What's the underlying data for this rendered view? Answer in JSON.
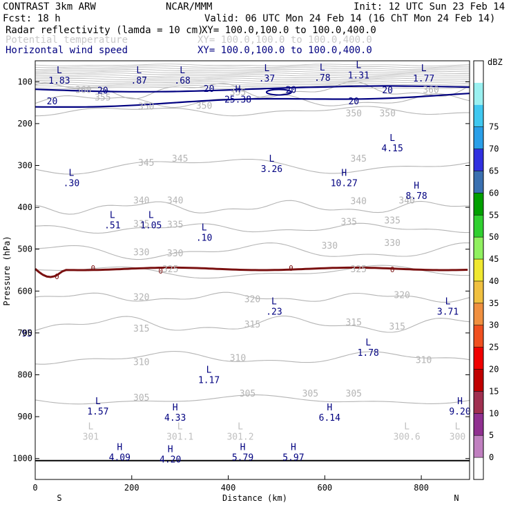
{
  "header": {
    "title": "CONTRAST  3km ARW",
    "source": "NCAR/MMM",
    "init": "Init: 12 UTC Sun 23 Feb 14",
    "fcst_label": "Fcst:",
    "fcst_value": "18 h",
    "valid": "Valid: 06 UTC Mon 24 Feb 14 (16 ChT Mon 24 Feb 14)",
    "fields": [
      {
        "name": "Radar reflectivity (lamda = 10 cm)",
        "xy": "XY= 100.0,100.0 to 100.0,400.0",
        "color": "#000000"
      },
      {
        "name": "Potential temperature",
        "xy": "XY= 100.0,100.0 to 100.0,400.0",
        "color": "#c8c8c8"
      },
      {
        "name": "Horizontal wind speed",
        "xy": "XY= 100.0,100.0 to 100.0,400.0",
        "color": "#000080"
      }
    ]
  },
  "chart_data": {
    "type": "contour-cross-section",
    "xlabel": "Distance (km)",
    "ylabel": "Pressure (hPa)",
    "xlim": [
      0,
      900
    ],
    "ylim": [
      1050,
      50
    ],
    "x_ticks": [
      0,
      200,
      400,
      600,
      800
    ],
    "y_ticks": [
      100,
      200,
      300,
      400,
      500,
      600,
      700,
      800,
      900,
      1000
    ],
    "x_end_labels": {
      "left": "S",
      "right": "N"
    },
    "theta_contours": [
      {
        "label": "305",
        "base": 860
      },
      {
        "label": "310",
        "base": 760
      },
      {
        "label": "315",
        "base": 680
      },
      {
        "label": "320",
        "base": 615
      },
      {
        "label": "325",
        "base": 555
      },
      {
        "label": "330",
        "base": 505
      },
      {
        "label": "335",
        "base": 450
      },
      {
        "label": "340",
        "base": 400
      },
      {
        "label": "345",
        "base": 300
      },
      {
        "label": "350",
        "base": 170
      },
      {
        "label": "355",
        "base": 145
      },
      {
        "label": "360",
        "base": 120
      }
    ],
    "theta_labels": [
      {
        "text": "305",
        "x": 220,
        "p": 855
      },
      {
        "text": "305",
        "x": 440,
        "p": 845
      },
      {
        "text": "305",
        "x": 570,
        "p": 845
      },
      {
        "text": "305",
        "x": 660,
        "p": 845
      },
      {
        "text": "310",
        "x": 220,
        "p": 770
      },
      {
        "text": "310",
        "x": 420,
        "p": 760
      },
      {
        "text": "310",
        "x": 805,
        "p": 765
      },
      {
        "text": "315",
        "x": 220,
        "p": 690
      },
      {
        "text": "315",
        "x": 450,
        "p": 680
      },
      {
        "text": "315",
        "x": 660,
        "p": 675
      },
      {
        "text": "315",
        "x": 750,
        "p": 685
      },
      {
        "text": "320",
        "x": 220,
        "p": 615
      },
      {
        "text": "320",
        "x": 450,
        "p": 620
      },
      {
        "text": "320",
        "x": 760,
        "p": 610
      },
      {
        "text": "325",
        "x": 280,
        "p": 548
      },
      {
        "text": "325",
        "x": 670,
        "p": 548
      },
      {
        "text": "330",
        "x": 220,
        "p": 508
      },
      {
        "text": "330",
        "x": 290,
        "p": 510
      },
      {
        "text": "330",
        "x": 610,
        "p": 492
      },
      {
        "text": "330",
        "x": 740,
        "p": 486
      },
      {
        "text": "335",
        "x": 220,
        "p": 440
      },
      {
        "text": "335",
        "x": 290,
        "p": 442
      },
      {
        "text": "335",
        "x": 650,
        "p": 435
      },
      {
        "text": "335",
        "x": 740,
        "p": 432
      },
      {
        "text": "340",
        "x": 220,
        "p": 384
      },
      {
        "text": "340",
        "x": 290,
        "p": 384
      },
      {
        "text": "340",
        "x": 670,
        "p": 386
      },
      {
        "text": "340",
        "x": 770,
        "p": 384
      },
      {
        "text": "345",
        "x": 230,
        "p": 294
      },
      {
        "text": "345",
        "x": 300,
        "p": 284
      },
      {
        "text": "345",
        "x": 670,
        "p": 284
      },
      {
        "text": "350",
        "x": 230,
        "p": 160
      },
      {
        "text": "350",
        "x": 350,
        "p": 158
      },
      {
        "text": "350",
        "x": 660,
        "p": 176
      },
      {
        "text": "350",
        "x": 730,
        "p": 176
      },
      {
        "text": "355",
        "x": 140,
        "p": 138
      },
      {
        "text": "355",
        "x": 420,
        "p": 126
      },
      {
        "text": "360",
        "x": 100,
        "p": 120
      },
      {
        "text": "360",
        "x": 820,
        "p": 120
      }
    ],
    "wind_contour_label": "20",
    "wind_labels": [
      {
        "text": "20",
        "x": 35,
        "p": 147
      },
      {
        "text": "20",
        "x": 140,
        "p": 122
      },
      {
        "text": "20",
        "x": 360,
        "p": 118
      },
      {
        "text": "20",
        "x": 530,
        "p": 120
      },
      {
        "text": "20",
        "x": 660,
        "p": 147
      },
      {
        "text": "20",
        "x": 730,
        "p": 121
      }
    ],
    "dbz_contour_label": "0",
    "dbz_labels": [
      {
        "text": "0",
        "x": 45,
        "p": 565
      },
      {
        "text": "0",
        "x": 120,
        "p": 545
      },
      {
        "text": "0",
        "x": 260,
        "p": 552
      },
      {
        "text": "0",
        "x": 530,
        "p": 545
      },
      {
        "text": "0",
        "x": 740,
        "p": 548
      }
    ],
    "extrema": [
      {
        "type": "L",
        "value": "1.83",
        "x": 50,
        "p": 85
      },
      {
        "type": "L",
        "value": ".87",
        "x": 215,
        "p": 85
      },
      {
        "type": "L",
        "value": ".68",
        "x": 305,
        "p": 85
      },
      {
        "type": "L",
        "value": ".37",
        "x": 480,
        "p": 80
      },
      {
        "type": "L",
        "value": ".78",
        "x": 595,
        "p": 78
      },
      {
        "type": "L",
        "value": "1.31",
        "x": 670,
        "p": 72
      },
      {
        "type": "L",
        "value": "1.77",
        "x": 805,
        "p": 80
      },
      {
        "type": "H",
        "value": "25.38",
        "x": 420,
        "p": 130
      },
      {
        "type": "L",
        "value": "4.15",
        "x": 740,
        "p": 246
      },
      {
        "type": "L",
        "value": ".30",
        "x": 75,
        "p": 330
      },
      {
        "type": "L",
        "value": "3.26",
        "x": 490,
        "p": 296
      },
      {
        "type": "H",
        "value": "10.27",
        "x": 640,
        "p": 330
      },
      {
        "type": "H",
        "value": "8.78",
        "x": 790,
        "p": 360
      },
      {
        "type": "L",
        "value": ".51",
        "x": 160,
        "p": 430
      },
      {
        "type": "L",
        "value": "1.05",
        "x": 240,
        "p": 430
      },
      {
        "type": "L",
        "value": ".10",
        "x": 350,
        "p": 460
      },
      {
        "type": "L",
        "value": ".23",
        "x": 495,
        "p": 637
      },
      {
        "type": "L",
        "value": "3.71",
        "x": 855,
        "p": 637
      },
      {
        "type": "L",
        "value": "1.78",
        "x": 690,
        "p": 735
      },
      {
        "type": "L",
        "value": "1.17",
        "x": 360,
        "p": 800
      },
      {
        "type": "L",
        "value": "1.57",
        "x": 130,
        "p": 875
      },
      {
        "type": "H",
        "value": "4.33",
        "x": 290,
        "p": 890
      },
      {
        "type": "H",
        "value": "6.14",
        "x": 610,
        "p": 890
      },
      {
        "type": "H",
        "value": "9.20",
        "x": 880,
        "p": 875
      },
      {
        "type": "H",
        "value": "4.09",
        "x": 175,
        "p": 985
      },
      {
        "type": "H",
        "value": "4.20",
        "x": 280,
        "p": 990
      },
      {
        "type": "H",
        "value": "5.79",
        "x": 430,
        "p": 985
      },
      {
        "type": "H",
        "value": "5.97",
        "x": 535,
        "p": 985
      }
    ],
    "theta_extrema": [
      {
        "type": "L",
        "value": "301",
        "x": 115,
        "p": 935
      },
      {
        "type": "L",
        "value": "301.1",
        "x": 300,
        "p": 935
      },
      {
        "type": "L",
        "value": "301.2",
        "x": 425,
        "p": 935
      },
      {
        "type": "L",
        "value": "300.6",
        "x": 770,
        "p": 935
      },
      {
        "type": "L",
        "value": "300",
        "x": 875,
        "p": 935
      }
    ],
    "edge_fragment": {
      "text": "95",
      "x": 0,
      "p": 700
    },
    "colorbar": {
      "title": "dBZ",
      "levels": [
        "0",
        "5",
        "10",
        "15",
        "20",
        "25",
        "30",
        "35",
        "40",
        "45",
        "50",
        "55",
        "60",
        "65",
        "70",
        "75"
      ],
      "colors": [
        "#ffffff",
        "#9af0f0",
        "#40c8f0",
        "#2a9fe8",
        "#3030e0",
        "#3a70b0",
        "#00a000",
        "#30d030",
        "#90f060",
        "#f0e830",
        "#f0c040",
        "#f09040",
        "#f05020",
        "#f00000",
        "#c00000",
        "#a03050",
        "#903090",
        "#c080c0",
        "#ffffff"
      ]
    }
  }
}
